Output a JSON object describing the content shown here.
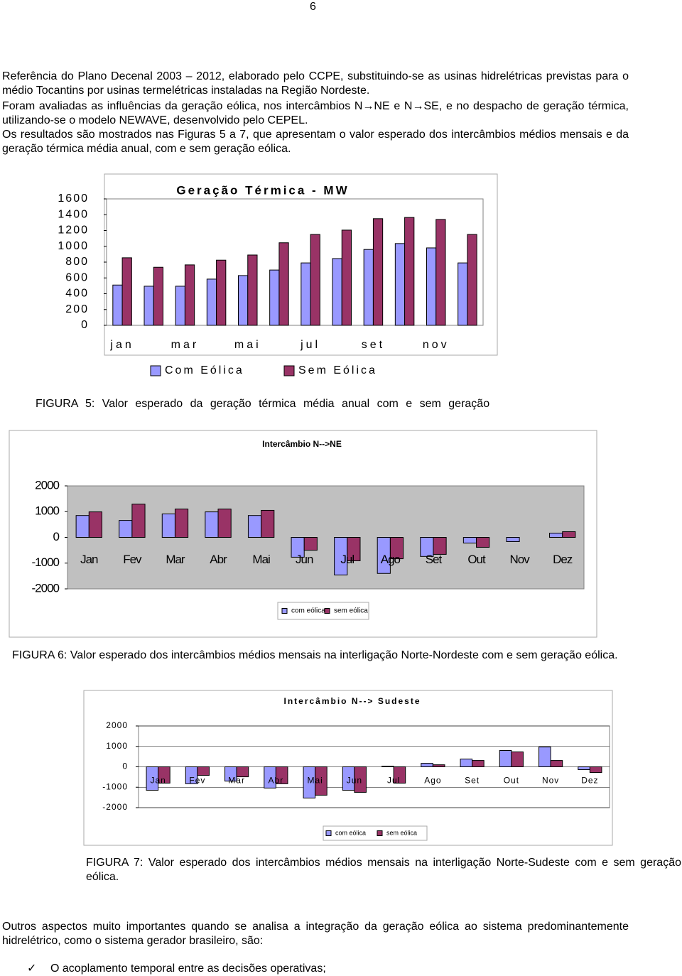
{
  "page_number": "6",
  "paragraphs": [
    "Referência do Plano Decenal 2003 – 2012, elaborado pelo CCPE, substituindo-se as usinas hidrelétricas previstas para o médio Tocantins por usinas termelétricas instaladas na Região Nordeste.",
    "Foram avaliadas as influências da geração eólica, nos intercâmbios N→NE e N→SE, e no despacho de geração térmica, utilizando-se o modelo NEWAVE, desenvolvido pelo CEPEL.",
    "Os resultados são mostrados nas Figuras 5 a 7, que apresentam o valor esperado dos intercâmbios médios mensais e da geração térmica média anual, com e sem geração eólica."
  ],
  "chart_data": [
    {
      "type": "bar",
      "title": "Geração Térmica - MW",
      "caption": "FIGURA 5: Valor esperado da geração térmica média anual com e sem geração",
      "categories": [
        "jan",
        null,
        "mar",
        null,
        "mai",
        null,
        "jul",
        null,
        "set",
        null,
        "nov",
        null
      ],
      "series": [
        {
          "name": "Com Eólica",
          "color": "#9999ff",
          "values": [
            510,
            495,
            495,
            585,
            630,
            700,
            790,
            845,
            960,
            1035,
            980,
            790
          ]
        },
        {
          "name": "Sem Eólica",
          "color": "#993366",
          "values": [
            855,
            735,
            765,
            825,
            890,
            1045,
            1150,
            1205,
            1350,
            1365,
            1340,
            1150
          ]
        }
      ],
      "ylim": [
        0,
        1600
      ],
      "yticks": [
        0,
        200,
        400,
        600,
        800,
        1000,
        1200,
        1400,
        1600
      ],
      "grid": false
    },
    {
      "type": "bar",
      "title": "Intercâmbio N-->NE",
      "caption": "FIGURA 6: Valor esperado dos intercâmbios médios mensais na interligação Norte-Nordeste com e sem geração eólica.",
      "categories": [
        "Jan",
        "Fev",
        "Mar",
        "Abr",
        "Mai",
        "Jun",
        "Jul",
        "Ago",
        "Set",
        "Out",
        "Nov",
        "Dez"
      ],
      "series": [
        {
          "name": "com eólica",
          "color": "#9999ff",
          "values": [
            850,
            660,
            910,
            990,
            850,
            -770,
            -1460,
            -1400,
            -740,
            -220,
            -165,
            165
          ]
        },
        {
          "name": "sem eólica",
          "color": "#993366",
          "values": [
            990,
            1290,
            1100,
            1100,
            1050,
            -500,
            -910,
            -830,
            -660,
            -385,
            0,
            220
          ]
        }
      ],
      "ylim": [
        -2000,
        2000
      ],
      "yticks": [
        -2000,
        -1000,
        0,
        1000,
        2000
      ],
      "grid": false
    },
    {
      "type": "bar",
      "title": "Intercâmbio N--> Sudeste",
      "caption": "FIGURA 7: Valor esperado dos intercâmbios médios mensais na interligação Norte-Sudeste com e sem geração eólica.",
      "categories": [
        "Jan",
        "Fev",
        "Mar",
        "Abr",
        "Mai",
        "Jun",
        "Jul",
        "Ago",
        "Set",
        "Out",
        "Nov",
        "Dez"
      ],
      "series": [
        {
          "name": "com eólica",
          "color": "#9999ff",
          "values": [
            -1150,
            -830,
            -700,
            -1040,
            -1530,
            -1150,
            30,
            170,
            380,
            800,
            970,
            -140
          ]
        },
        {
          "name": "sem eólica",
          "color": "#993366",
          "values": [
            -800,
            -420,
            -490,
            -830,
            -1390,
            -1250,
            -800,
            100,
            310,
            730,
            310,
            -280
          ]
        }
      ],
      "ylim": [
        -2000,
        2000
      ],
      "yticks": [
        -2000,
        -1000,
        0,
        1000,
        2000
      ],
      "grid": true
    }
  ],
  "closing_paragraph": "Outros aspectos muito importantes quando se analisa a integração da geração eólica ao sistema predominantemente hidrelétrico, como o sistema gerador brasileiro, são:",
  "bullet": "O acoplamento temporal entre as decisões operativas;"
}
